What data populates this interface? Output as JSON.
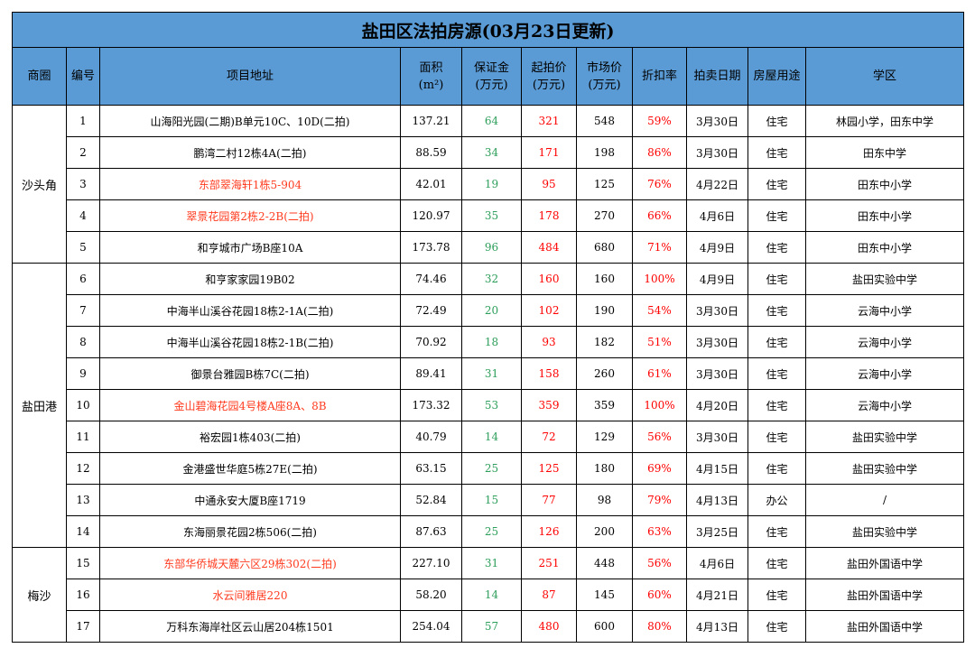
{
  "title": "盐田区法拍房源(03月23日更新)",
  "headers": {
    "district": "商圈",
    "no": "编号",
    "address": "项目地址",
    "area": "面积",
    "area_unit": "(m²)",
    "deposit": "保证金",
    "deposit_unit": "(万元)",
    "start_price": "起拍价",
    "start_price_unit": "(万元)",
    "market_price": "市场价",
    "market_price_unit": "(万元)",
    "discount": "折扣率",
    "auction_date": "拍卖日期",
    "usage": "房屋用途",
    "school": "学区"
  },
  "groups": [
    {
      "district": "沙头角",
      "rows": [
        {
          "no": "1",
          "address": "山海阳光园(二期)B单元10C、10D(二拍)",
          "area": "137.21",
          "deposit": "64",
          "start_price": "321",
          "market_price": "548",
          "discount": "59%",
          "date": "3月30日",
          "usage": "住宅",
          "school": "林园小学，田东中学",
          "highlight": false
        },
        {
          "no": "2",
          "address": "鹏湾二村12栋4A(二拍)",
          "area": "88.59",
          "deposit": "34",
          "start_price": "171",
          "market_price": "198",
          "discount": "86%",
          "date": "3月30日",
          "usage": "住宅",
          "school": "田东中学",
          "highlight": false
        },
        {
          "no": "3",
          "address": "东部翠海轩1栋5-904",
          "area": "42.01",
          "deposit": "19",
          "start_price": "95",
          "market_price": "125",
          "discount": "76%",
          "date": "4月22日",
          "usage": "住宅",
          "school": "田东中小学",
          "highlight": true
        },
        {
          "no": "4",
          "address": "翠景花园第2栋2-2B(二拍)",
          "area": "120.97",
          "deposit": "35",
          "start_price": "178",
          "market_price": "270",
          "discount": "66%",
          "date": "4月6日",
          "usage": "住宅",
          "school": "田东中小学",
          "highlight": true
        },
        {
          "no": "5",
          "address": "和亨城市广场B座10A",
          "area": "173.78",
          "deposit": "96",
          "start_price": "484",
          "market_price": "680",
          "discount": "71%",
          "date": "4月9日",
          "usage": "住宅",
          "school": "田东中小学",
          "highlight": false
        }
      ]
    },
    {
      "district": "盐田港",
      "rows": [
        {
          "no": "6",
          "address": "和亨家家园19B02",
          "area": "74.46",
          "deposit": "32",
          "start_price": "160",
          "market_price": "160",
          "discount": "100%",
          "date": "4月9日",
          "usage": "住宅",
          "school": "盐田实验中学",
          "highlight": false
        },
        {
          "no": "7",
          "address": "中海半山溪谷花园18栋2-1A(二拍)",
          "area": "72.49",
          "deposit": "20",
          "start_price": "102",
          "market_price": "190",
          "discount": "54%",
          "date": "3月30日",
          "usage": "住宅",
          "school": "云海中小学",
          "highlight": false
        },
        {
          "no": "8",
          "address": "中海半山溪谷花园18栋2-1B(二拍)",
          "area": "70.92",
          "deposit": "18",
          "start_price": "93",
          "market_price": "182",
          "discount": "51%",
          "date": "3月30日",
          "usage": "住宅",
          "school": "云海中小学",
          "highlight": false
        },
        {
          "no": "9",
          "address": "御景台雅园B栋7C(二拍)",
          "area": "89.41",
          "deposit": "31",
          "start_price": "158",
          "market_price": "260",
          "discount": "61%",
          "date": "3月30日",
          "usage": "住宅",
          "school": "云海中小学",
          "highlight": false
        },
        {
          "no": "10",
          "address": "金山碧海花园4号楼A座8A、8B",
          "area": "173.32",
          "deposit": "53",
          "start_price": "359",
          "market_price": "359",
          "discount": "100%",
          "date": "4月20日",
          "usage": "住宅",
          "school": "云海中小学",
          "highlight": true
        },
        {
          "no": "11",
          "address": "裕宏园1栋403(二拍)",
          "area": "40.79",
          "deposit": "14",
          "start_price": "72",
          "market_price": "129",
          "discount": "56%",
          "date": "3月30日",
          "usage": "住宅",
          "school": "盐田实验中学",
          "highlight": false
        },
        {
          "no": "12",
          "address": "金港盛世华庭5栋27E(二拍)",
          "area": "63.15",
          "deposit": "25",
          "start_price": "125",
          "market_price": "180",
          "discount": "69%",
          "date": "4月15日",
          "usage": "住宅",
          "school": "盐田实验中学",
          "highlight": false
        },
        {
          "no": "13",
          "address": "中通永安大厦B座1719",
          "area": "52.84",
          "deposit": "15",
          "start_price": "77",
          "market_price": "98",
          "discount": "79%",
          "date": "4月13日",
          "usage": "办公",
          "school": "/",
          "highlight": false
        },
        {
          "no": "14",
          "address": "东海丽景花园2栋506(二拍)",
          "area": "87.63",
          "deposit": "25",
          "start_price": "126",
          "market_price": "200",
          "discount": "63%",
          "date": "3月25日",
          "usage": "住宅",
          "school": "盐田实验中学",
          "highlight": false
        }
      ]
    },
    {
      "district": "梅沙",
      "rows": [
        {
          "no": "15",
          "address": "东部华侨城天麓六区29栋302(二拍)",
          "area": "227.10",
          "deposit": "31",
          "start_price": "251",
          "market_price": "448",
          "discount": "56%",
          "date": "4月6日",
          "usage": "住宅",
          "school": "盐田外国语中学",
          "highlight": true
        },
        {
          "no": "16",
          "address": "水云间雅居220",
          "area": "58.20",
          "deposit": "14",
          "start_price": "87",
          "market_price": "145",
          "discount": "60%",
          "date": "4月21日",
          "usage": "住宅",
          "school": "盐田外国语中学",
          "highlight": true
        },
        {
          "no": "17",
          "address": "万科东海岸社区云山居204栋1501",
          "area": "254.04",
          "deposit": "57",
          "start_price": "480",
          "market_price": "600",
          "discount": "80%",
          "date": "4月13日",
          "usage": "住宅",
          "school": "盐田外国语中学",
          "highlight": false
        }
      ]
    }
  ],
  "colors": {
    "header_bg": "#5b9bd5",
    "deposit": "#2e9e5b",
    "price": "#ff0000",
    "highlight_address": "#ff3b1f"
  }
}
